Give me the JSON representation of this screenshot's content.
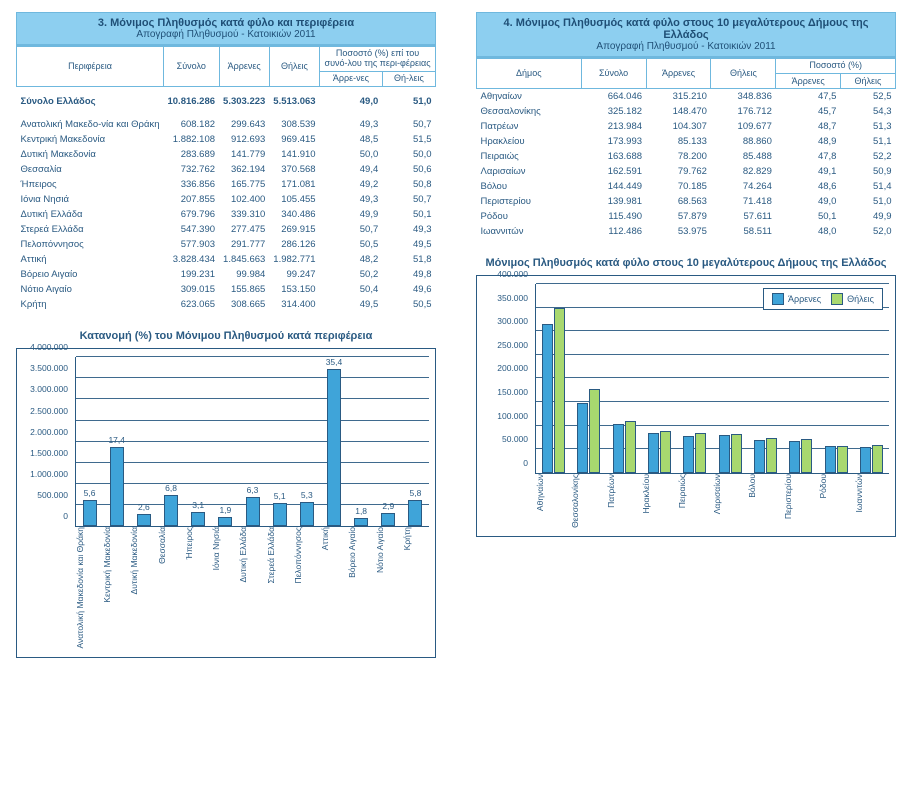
{
  "colors": {
    "text": "#2a5a82",
    "header_bg": "#8dcff0",
    "border": "#6fb8de",
    "axis": "#2a5a82",
    "bar_blue": "#3fa4d9",
    "bar_green": "#a8d86f",
    "background": "#ffffff"
  },
  "table3": {
    "title": "3. Μόνιμος Πληθυσμός κατά φύλο και περιφέρεια",
    "subtitle": "Απογραφή Πληθυσμού - Κατοικιών 2011",
    "columns": {
      "region": "Περιφέρεια",
      "total": "Σύνολο",
      "males": "Άρρενες",
      "females": "Θήλεις",
      "pct_header": "Ποσοστό (%) επί του συνό-λου της περι-φέρειας",
      "pct_males": "Άρρε-νες",
      "pct_females": "Θή-λεις"
    },
    "total_row": {
      "label": "Σύνολο Ελλάδος",
      "total": "10.816.286",
      "males": "5.303.223",
      "females": "5.513.063",
      "pct_m": "49,0",
      "pct_f": "51,0"
    },
    "rows": [
      {
        "label": "Ανατολική Μακεδο-νία και Θράκη",
        "total": "608.182",
        "males": "299.643",
        "females": "308.539",
        "pct_m": "49,3",
        "pct_f": "50,7"
      },
      {
        "label": "Κεντρική Μακεδονία",
        "total": "1.882.108",
        "males": "912.693",
        "females": "969.415",
        "pct_m": "48,5",
        "pct_f": "51,5"
      },
      {
        "label": "Δυτική Μακεδονία",
        "total": "283.689",
        "males": "141.779",
        "females": "141.910",
        "pct_m": "50,0",
        "pct_f": "50,0"
      },
      {
        "label": "Θεσσαλία",
        "total": "732.762",
        "males": "362.194",
        "females": "370.568",
        "pct_m": "49,4",
        "pct_f": "50,6"
      },
      {
        "label": "Ήπειρος",
        "total": "336.856",
        "males": "165.775",
        "females": "171.081",
        "pct_m": "49,2",
        "pct_f": "50,8"
      },
      {
        "label": "Ιόνια Νησιά",
        "total": "207.855",
        "males": "102.400",
        "females": "105.455",
        "pct_m": "49,3",
        "pct_f": "50,7"
      },
      {
        "label": "Δυτική Ελλάδα",
        "total": "679.796",
        "males": "339.310",
        "females": "340.486",
        "pct_m": "49,9",
        "pct_f": "50,1"
      },
      {
        "label": "Στερεά Ελλάδα",
        "total": "547.390",
        "males": "277.475",
        "females": "269.915",
        "pct_m": "50,7",
        "pct_f": "49,3"
      },
      {
        "label": "Πελοπόννησος",
        "total": "577.903",
        "males": "291.777",
        "females": "286.126",
        "pct_m": "50,5",
        "pct_f": "49,5"
      },
      {
        "label": "Αττική",
        "total": "3.828.434",
        "males": "1.845.663",
        "females": "1.982.771",
        "pct_m": "48,2",
        "pct_f": "51,8"
      },
      {
        "label": "Βόρειο Αιγαίο",
        "total": "199.231",
        "males": "99.984",
        "females": "99.247",
        "pct_m": "50,2",
        "pct_f": "49,8"
      },
      {
        "label": "Νότιο Αιγαίο",
        "total": "309.015",
        "males": "155.865",
        "females": "153.150",
        "pct_m": "50,4",
        "pct_f": "49,6"
      },
      {
        "label": "Κρήτη",
        "total": "623.065",
        "males": "308.665",
        "females": "314.400",
        "pct_m": "49,5",
        "pct_f": "50,5"
      }
    ]
  },
  "table4": {
    "title": "4. Μόνιμος Πληθυσμός κατά φύλο στους 10 μεγαλύτερους Δήμους της Ελλάδος",
    "subtitle": "Απογραφή Πληθυσμού - Κατοικιών 2011",
    "columns": {
      "municipality": "Δήμος",
      "total": "Σύνολο",
      "males": "Άρρενες",
      "females": "Θήλεις",
      "pct_header": "Ποσοστό (%)",
      "pct_males": "Άρρενες",
      "pct_females": "Θήλεις"
    },
    "rows": [
      {
        "label": "Αθηναίων",
        "total": "664.046",
        "males": "315.210",
        "females": "348.836",
        "pct_m": "47,5",
        "pct_f": "52,5"
      },
      {
        "label": "Θεσσαλονίκης",
        "total": "325.182",
        "males": "148.470",
        "females": "176.712",
        "pct_m": "45,7",
        "pct_f": "54,3"
      },
      {
        "label": "Πατρέων",
        "total": "213.984",
        "males": "104.307",
        "females": "109.677",
        "pct_m": "48,7",
        "pct_f": "51,3"
      },
      {
        "label": "Ηρακλείου",
        "total": "173.993",
        "males": "85.133",
        "females": "88.860",
        "pct_m": "48,9",
        "pct_f": "51,1"
      },
      {
        "label": "Πειραιώς",
        "total": "163.688",
        "males": "78.200",
        "females": "85.488",
        "pct_m": "47,8",
        "pct_f": "52,2"
      },
      {
        "label": "Λαρισαίων",
        "total": "162.591",
        "males": "79.762",
        "females": "82.829",
        "pct_m": "49,1",
        "pct_f": "50,9"
      },
      {
        "label": "Βόλου",
        "total": "144.449",
        "males": "70.185",
        "females": "74.264",
        "pct_m": "48,6",
        "pct_f": "51,4"
      },
      {
        "label": "Περιστερίου",
        "total": "139.981",
        "males": "68.563",
        "females": "71.418",
        "pct_m": "49,0",
        "pct_f": "51,0"
      },
      {
        "label": "Ρόδου",
        "total": "115.490",
        "males": "57.879",
        "females": "57.611",
        "pct_m": "50,1",
        "pct_f": "49,9"
      },
      {
        "label": "Ιωαννιτών",
        "total": "112.486",
        "males": "53.975",
        "females": "58.511",
        "pct_m": "48,0",
        "pct_f": "52,0"
      }
    ]
  },
  "chart1": {
    "type": "bar",
    "title": "Κατανομή (%) του Μόνιμου Πληθυσμού κατά περιφέρεια",
    "ylim": [
      0,
      4000000
    ],
    "ytick_step": 500000,
    "yticks": [
      "0",
      "500.000",
      "1.000.000",
      "1.500.000",
      "2.000.000",
      "2.500.000",
      "3.000.000",
      "3.500.000",
      "4.000.000"
    ],
    "bar_color": "#3fa4d9",
    "border_color": "#2a5a82",
    "background_color": "#ffffff",
    "font_size": 9,
    "categories": [
      "Ανατολική Μακεδονία και Θράκη",
      "Κεντρική Μακεδονία",
      "Δυτική Μακεδονία",
      "Θεσσαλία",
      "Ήπειρος",
      "Ιόνια Νησιά",
      "Δυτική Ελλάδα",
      "Στερεά Ελλάδα",
      "Πελοπόννησος",
      "Αττική",
      "Βόρειο Αιγαίο",
      "Νότιο Αιγαίο",
      "Κρήτη"
    ],
    "values": [
      608182,
      1882108,
      283689,
      732762,
      336856,
      207855,
      679796,
      547390,
      577903,
      3828434,
      199231,
      309015,
      623065
    ],
    "labels_pct": [
      "5,6",
      "17,4",
      "2,6",
      "6,8",
      "3,1",
      "1,9",
      "6,3",
      "5,1",
      "5,3",
      "35,4",
      "1,8",
      "2,9",
      "5,8"
    ]
  },
  "chart2": {
    "type": "grouped-bar",
    "title": "Μόνιμος Πληθυσμός κατά φύλο στους 10 μεγαλύτερους Δήμους της Ελλάδος",
    "ylim": [
      0,
      400000
    ],
    "ytick_step": 50000,
    "yticks": [
      "0",
      "50.000",
      "100.000",
      "150.000",
      "200.000",
      "250.000",
      "300.000",
      "350.000",
      "400.000"
    ],
    "bar_colors": [
      "#3fa4d9",
      "#a8d86f"
    ],
    "border_color": "#2a5a82",
    "background_color": "#ffffff",
    "font_size": 9,
    "legend": {
      "items": [
        "Άρρενες",
        "Θήλεις"
      ],
      "position": "top-right"
    },
    "categories": [
      "Αθηναίων",
      "Θεσσαλονίκης",
      "Πατρέων",
      "Ηρακλείου",
      "Πειραιώς",
      "Λαρισαίων",
      "Βόλου",
      "Περιστερίου",
      "Ρόδου",
      "Ιωαννιτών"
    ],
    "series": [
      {
        "name": "Άρρενες",
        "values": [
          315210,
          148470,
          104307,
          85133,
          78200,
          79762,
          70185,
          68563,
          57879,
          53975
        ]
      },
      {
        "name": "Θήλεις",
        "values": [
          348836,
          176712,
          109677,
          88860,
          85488,
          82829,
          74264,
          71418,
          57611,
          58511
        ]
      }
    ]
  }
}
